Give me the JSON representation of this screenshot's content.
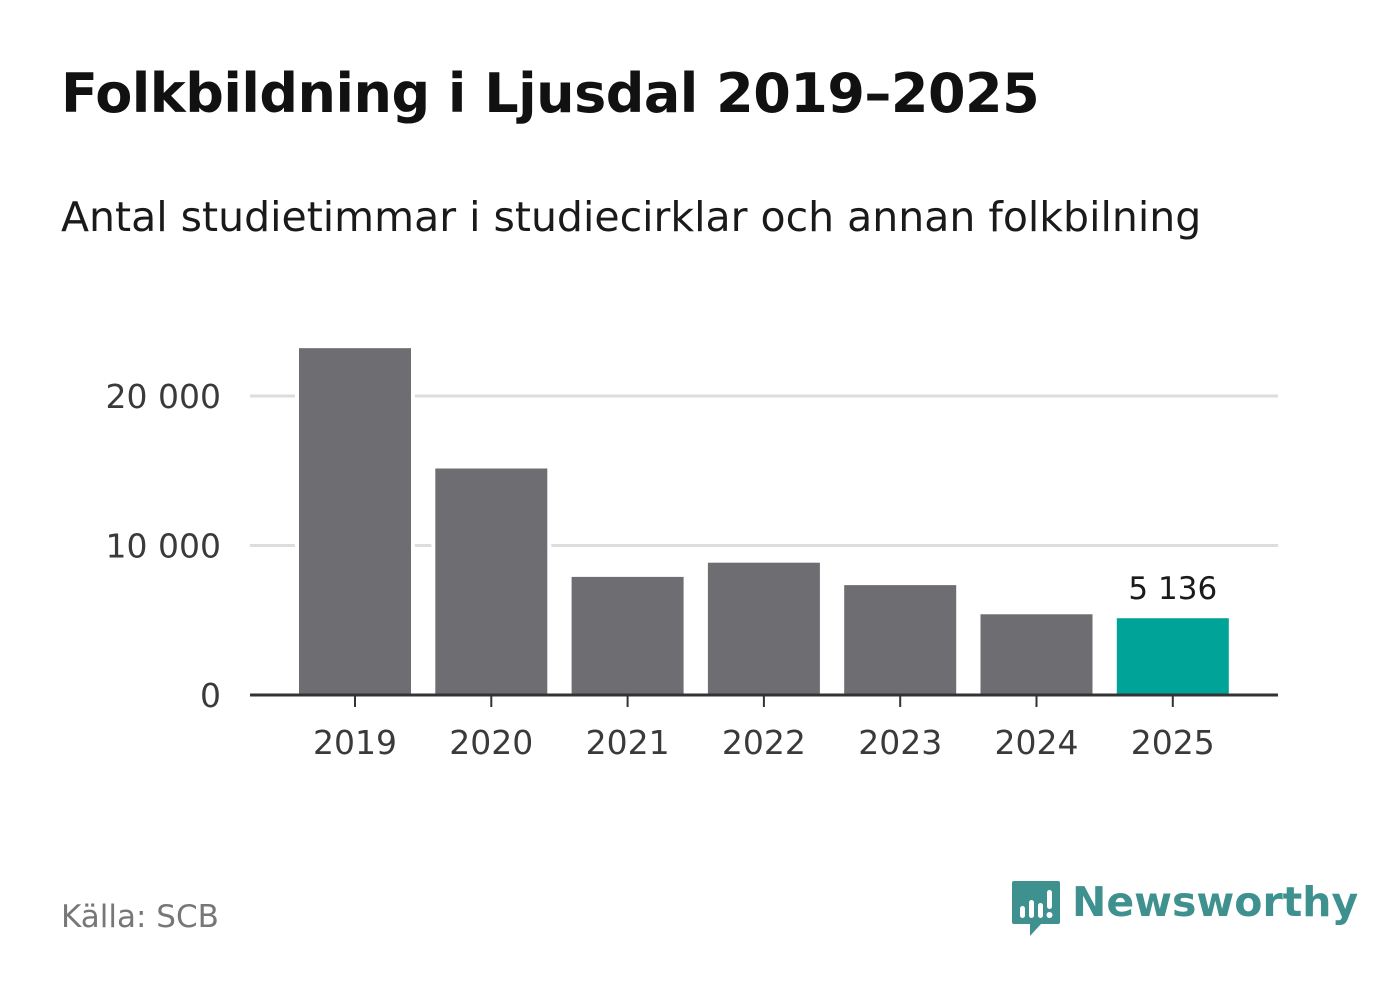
{
  "title": "Folkbildning i Ljusdal 2019–2025",
  "subtitle": "Antal studietimmar i studiecirklar och annan folkbilning",
  "source": "Källa: SCB",
  "brand": {
    "name": "Newsworthy",
    "icon": "newsworthy-logo-icon",
    "color": "#3f9190"
  },
  "colors": {
    "bar": "#6e6d72",
    "highlight": "#00a398",
    "grid": "#dddddd",
    "axis": "#333333"
  },
  "chart_data": {
    "type": "bar",
    "categories": [
      "2019",
      "2020",
      "2021",
      "2022",
      "2023",
      "2024",
      "2025"
    ],
    "values": [
      23200,
      15150,
      7900,
      8850,
      7350,
      5400,
      5136
    ],
    "highlight_index": 6,
    "data_labels": [
      {
        "index": 6,
        "text": "5 136"
      }
    ],
    "yticks": [
      {
        "value": 0,
        "label": "0"
      },
      {
        "value": 10000,
        "label": "10 000"
      },
      {
        "value": 20000,
        "label": "20 000"
      }
    ],
    "ylim": [
      0,
      24000
    ],
    "grid": true,
    "xlabel": "",
    "ylabel": "",
    "title": "Folkbildning i Ljusdal 2019–2025"
  }
}
